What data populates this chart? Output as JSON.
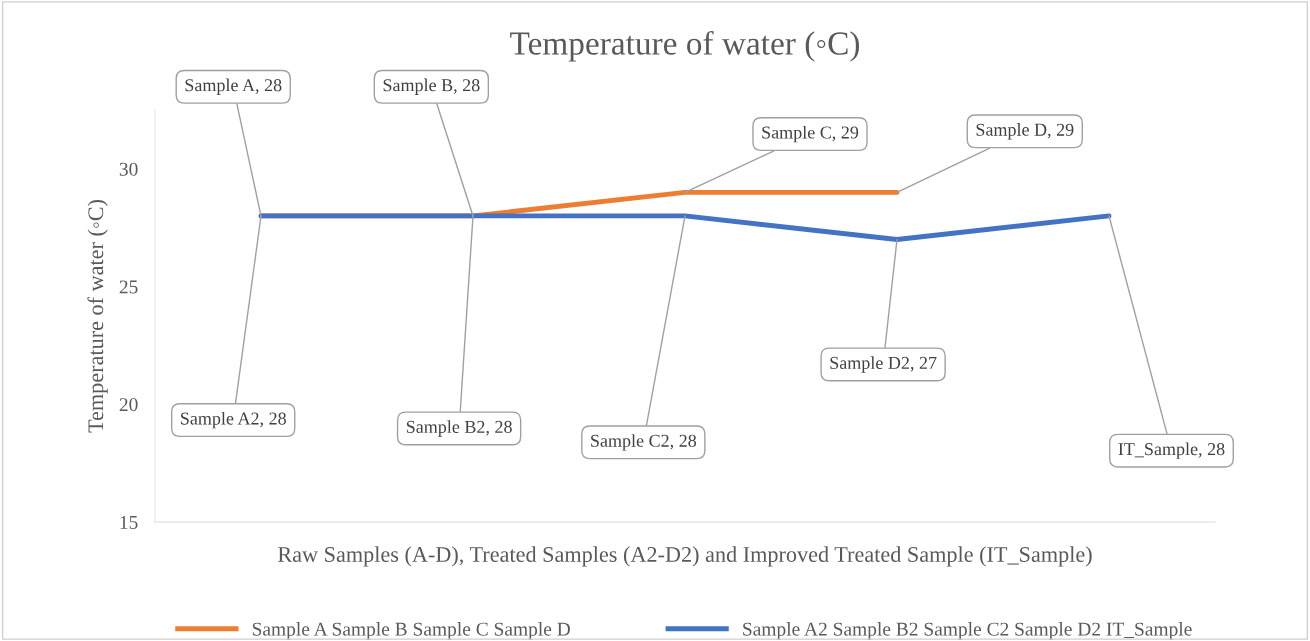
{
  "chart_data": {
    "type": "line",
    "title": "Temperature of water (◦C)",
    "xlabel": "Raw Samples (A-D), Treated Samples (A2-D2) and Improved Treated Sample (IT_Sample)",
    "ylabel": "Temperature of water (◦C)",
    "categories": [
      null,
      null,
      null,
      null,
      null
    ],
    "series": [
      {
        "name": "Sample A Sample B Sample C Sample D",
        "color": "#ed7d31",
        "values": [
          28,
          28,
          29,
          29,
          null
        ],
        "value_labels": [
          "Sample A, 28",
          "Sample B, 28",
          "Sample C, 29",
          "Sample D, 29",
          null
        ]
      },
      {
        "name": "Sample A2 Sample B2 Sample C2 Sample D2 IT_Sample",
        "color": "#4472c4",
        "values": [
          28,
          28,
          28,
          27,
          28
        ],
        "value_labels": [
          "Sample A2, 28",
          "Sample B2, 28",
          "Sample C2, 28",
          "Sample D2, 27",
          "IT_Sample, 28"
        ]
      }
    ],
    "ylim": [
      15,
      32.5
    ],
    "yticks": [
      15,
      20,
      25,
      30
    ],
    "grid": false,
    "legend": "bottom",
    "marker": "none",
    "line_style": "solid"
  }
}
